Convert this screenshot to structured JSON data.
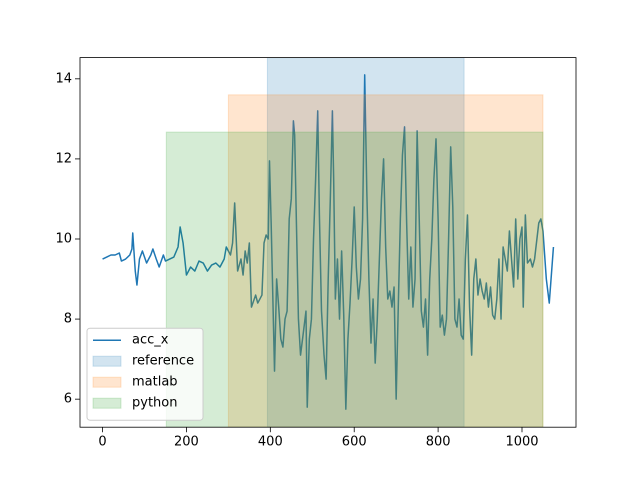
{
  "chart_data": {
    "type": "line",
    "xlim": [
      -53.75,
      1128.75
    ],
    "ylim": [
      5.3,
      14.53
    ],
    "xticks": [
      0,
      200,
      400,
      600,
      800,
      1000
    ],
    "yticks": [
      6,
      8,
      10,
      12,
      14
    ],
    "legend": "lower left",
    "series": [
      {
        "name": "acc_x",
        "color": "#1f77b4",
        "x": [
          0,
          10,
          20,
          30,
          40,
          45,
          55,
          65,
          70,
          72,
          78,
          82,
          88,
          95,
          105,
          115,
          120,
          128,
          135,
          145,
          150,
          160,
          170,
          180,
          185,
          192,
          200,
          210,
          220,
          230,
          240,
          250,
          260,
          270,
          280,
          290,
          295,
          305,
          310,
          315,
          322,
          330,
          335,
          340,
          345,
          350,
          355,
          365,
          370,
          380,
          385,
          390,
          395,
          398,
          402,
          405,
          410,
          415,
          420,
          425,
          430,
          435,
          440,
          445,
          450,
          455,
          458,
          462,
          467,
          472,
          478,
          485,
          488,
          493,
          498,
          503,
          508,
          513,
          517,
          522,
          528,
          533,
          538,
          543,
          548,
          551,
          555,
          560,
          565,
          570,
          575,
          580,
          585,
          590,
          595,
          600,
          605,
          610,
          615,
          620,
          625,
          630,
          635,
          640,
          645,
          650,
          655,
          660,
          665,
          670,
          675,
          680,
          685,
          690,
          695,
          700,
          705,
          710,
          715,
          720,
          725,
          730,
          735,
          740,
          745,
          750,
          755,
          760,
          765,
          770,
          775,
          780,
          785,
          790,
          795,
          800,
          805,
          810,
          815,
          820,
          825,
          830,
          835,
          840,
          845,
          850,
          855,
          860,
          865,
          870,
          875,
          880,
          885,
          890,
          895,
          900,
          905,
          910,
          915,
          920,
          925,
          930,
          935,
          940,
          945,
          950,
          955,
          960,
          965,
          970,
          975,
          980,
          985,
          990,
          995,
          1000,
          1003,
          1008,
          1013,
          1020,
          1025,
          1030,
          1040,
          1045,
          1050,
          1058,
          1065,
          1075
        ],
        "values": [
          9.5,
          9.55,
          9.6,
          9.6,
          9.65,
          9.45,
          9.5,
          9.6,
          9.75,
          10.15,
          9.2,
          8.85,
          9.5,
          9.7,
          9.4,
          9.6,
          9.75,
          9.5,
          9.3,
          9.6,
          9.45,
          9.5,
          9.55,
          9.8,
          10.3,
          9.9,
          9.1,
          9.3,
          9.2,
          9.45,
          9.4,
          9.2,
          9.35,
          9.4,
          9.3,
          9.5,
          9.8,
          9.6,
          9.9,
          10.9,
          9.2,
          9.5,
          9.1,
          9.7,
          9.4,
          9.9,
          8.3,
          8.6,
          8.4,
          8.6,
          9.9,
          10.1,
          10.0,
          11.95,
          10.4,
          9.0,
          6.7,
          9.0,
          8.3,
          7.5,
          7.3,
          8.0,
          8.2,
          10.5,
          11.0,
          12.95,
          12.6,
          10.5,
          8.0,
          7.1,
          7.6,
          8.2,
          5.8,
          7.5,
          8.0,
          10.0,
          11.5,
          13.2,
          10.6,
          8.2,
          7.1,
          6.5,
          9.0,
          11.0,
          13.2,
          11.5,
          8.5,
          9.5,
          8.0,
          9.7,
          8.1,
          5.75,
          7.5,
          8.4,
          9.5,
          10.8,
          9.3,
          8.5,
          9.0,
          10.5,
          14.1,
          11.2,
          9.0,
          7.4,
          8.5,
          6.9,
          8.0,
          9.5,
          11.0,
          12.0,
          9.8,
          8.5,
          8.7,
          8.3,
          8.8,
          6.0,
          8.3,
          10.5,
          12.1,
          12.8,
          10.4,
          8.5,
          9.8,
          8.3,
          9.0,
          12.7,
          10.5,
          8.2,
          7.8,
          8.5,
          7.1,
          9.0,
          10.0,
          11.5,
          12.5,
          10.5,
          7.8,
          8.1,
          7.6,
          8.0,
          10.0,
          12.3,
          10.8,
          8.0,
          7.8,
          8.5,
          7.6,
          7.5,
          9.5,
          10.6,
          8.3,
          7.1,
          9.0,
          9.5,
          8.6,
          9.0,
          8.7,
          8.5,
          8.9,
          8.3,
          8.8,
          8.1,
          8.0,
          8.5,
          9.5,
          8.0,
          9.8,
          9.5,
          9.2,
          10.2,
          9.5,
          8.8,
          10.5,
          9.0,
          10.0,
          10.3,
          8.3,
          10.6,
          9.4,
          9.5,
          9.3,
          9.5,
          10.4,
          10.5,
          10.2,
          9.0,
          8.4,
          9.8
        ]
      }
    ],
    "spans": [
      {
        "name": "reference",
        "color": "#1f77b4",
        "x": [
          393,
          862
        ],
        "y": [
          5.3,
          14.53
        ]
      },
      {
        "name": "matlab",
        "color": "#ff7f0e",
        "x": [
          300,
          1050
        ],
        "y": [
          5.3,
          13.6
        ]
      },
      {
        "name": "python",
        "color": "#2ca02c",
        "x": [
          152,
          1050
        ],
        "y": [
          5.3,
          12.67
        ]
      }
    ]
  }
}
